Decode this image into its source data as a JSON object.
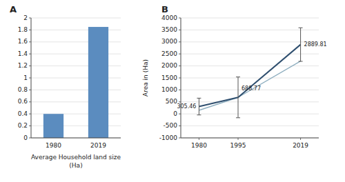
{
  "chart_data": [
    {
      "type": "bar",
      "title": "A",
      "categories": [
        "1980",
        "2019"
      ],
      "values": [
        0.4,
        1.85
      ],
      "color": "#5b8cbf",
      "xlabel": "Average Household land size\n(Ha)",
      "ylim": [
        0,
        2
      ],
      "yticks": [
        0,
        0.2,
        0.4,
        0.6,
        0.8,
        1,
        1.2,
        1.4,
        1.6,
        1.8,
        2
      ],
      "grid": true
    },
    {
      "type": "line",
      "title": "B",
      "x": [
        1980,
        1995,
        2019
      ],
      "series": [
        {
          "color": "#8fafc0",
          "values": [
            150,
            688.77,
            2200
          ]
        },
        {
          "color": "#2f4f6f",
          "values": [
            305.46,
            688.77,
            2889.81
          ],
          "error": [
            350,
            850,
            700
          ],
          "data_labels": true
        }
      ],
      "ylabel": "Area in (Ha)",
      "xlim": [
        1973,
        2026
      ],
      "xticks": [
        1980,
        1995,
        2019
      ],
      "ylim": [
        -1000,
        4000
      ],
      "yticks": [
        -1000,
        -500,
        0,
        500,
        1000,
        1500,
        2000,
        2500,
        3000,
        3500,
        4000
      ],
      "grid": true
    }
  ]
}
